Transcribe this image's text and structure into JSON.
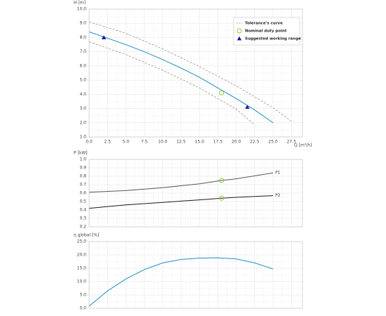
{
  "chart_data": [
    {
      "type": "line",
      "y_label": "H [m]",
      "x_label": "Q [m³/h]",
      "xlim": [
        0,
        29
      ],
      "ylim": [
        1,
        10
      ],
      "xticks": [
        {
          "value": 0,
          "label": "0.0"
        },
        2.5,
        {
          "value": 5,
          "label": "5.0"
        },
        7.5,
        {
          "value": 10,
          "label": "10.0"
        },
        12.5,
        {
          "value": 15,
          "label": "15.0"
        },
        17.5,
        {
          "value": 20,
          "label": "20.0"
        },
        22.5,
        {
          "value": 25,
          "label": "25.0"
        },
        27.5
      ],
      "yticks": [
        {
          "value": 1,
          "label": "1.0"
        },
        {
          "value": 2,
          "label": "2.0"
        },
        {
          "value": 3,
          "label": "3.0"
        },
        {
          "value": 4,
          "label": "4.0"
        },
        {
          "value": 5,
          "label": "5.0"
        },
        {
          "value": 6,
          "label": "6.0"
        },
        {
          "value": 7,
          "label": "7.0"
        },
        {
          "value": 8,
          "label": "8.0"
        },
        {
          "value": 9,
          "label": "9.0"
        },
        {
          "value": 10,
          "label": "10.0"
        }
      ],
      "grid": true,
      "legend": "upper right",
      "series": [
        {
          "name": "Tolerance's curve",
          "color": "#888888",
          "style": "dashed",
          "x": [
            0,
            5,
            10,
            15,
            20,
            25,
            27.5
          ],
          "values": [
            9.1,
            8.3,
            7.2,
            5.95,
            4.6,
            3.05,
            2.1
          ]
        },
        {
          "color": "#888888",
          "style": "dashed",
          "x": [
            0,
            5,
            10,
            15,
            20,
            22.5
          ],
          "values": [
            7.7,
            6.8,
            5.7,
            4.45,
            2.95,
            1.85
          ]
        },
        {
          "color": "#1f8dc4",
          "style": "solid",
          "x": [
            0,
            2.5,
            5,
            7.5,
            10,
            12.5,
            15,
            17.5,
            20,
            22.5,
            25
          ],
          "values": [
            8.4,
            7.95,
            7.5,
            7.0,
            6.45,
            5.85,
            5.2,
            4.45,
            3.7,
            2.9,
            2.0
          ]
        },
        {
          "name": "Nominal duty point",
          "color": "#8cc63f",
          "style": "circle",
          "x": [
            18
          ],
          "values": [
            4.1
          ]
        },
        {
          "name": "Suggested working range",
          "color": "#1515a0",
          "style": "triangle",
          "x": [
            2,
            21.5
          ],
          "values": [
            8.0,
            3.1
          ]
        }
      ]
    },
    {
      "type": "line",
      "y_label": "P [kW]",
      "xlim": [
        0,
        29
      ],
      "ylim": [
        0.2,
        1.0
      ],
      "yticks": [
        0.2,
        0.3,
        0.4,
        0.5,
        0.6,
        0.7,
        0.8,
        0.9,
        {
          "value": 1,
          "label": "1.0"
        }
      ],
      "grid": true,
      "legend": "line end",
      "series": [
        {
          "name": "P1",
          "color": "#555555",
          "style": "solid",
          "x": [
            0,
            5,
            10,
            15,
            18,
            20,
            25
          ],
          "values": [
            0.61,
            0.63,
            0.665,
            0.71,
            0.75,
            0.77,
            0.84
          ]
        },
        {
          "name": "P2",
          "color": "#1a1a1a",
          "style": "solid",
          "x": [
            0,
            5,
            10,
            15,
            18,
            20,
            25
          ],
          "values": [
            0.42,
            0.46,
            0.49,
            0.52,
            0.54,
            0.55,
            0.57
          ]
        },
        {
          "color": "#8cc63f",
          "style": "circle",
          "x": [
            18,
            18
          ],
          "values": [
            0.75,
            0.54
          ]
        }
      ]
    },
    {
      "type": "line",
      "y_label": "η global [%]",
      "xlim": [
        0,
        29
      ],
      "ylim": [
        0,
        25
      ],
      "yticks": [
        {
          "value": 0,
          "label": "0.0"
        },
        {
          "value": 5,
          "label": "5.0"
        },
        {
          "value": 10,
          "label": "10.0"
        },
        {
          "value": 15,
          "label": "15.0"
        },
        {
          "value": 20,
          "label": "20.0"
        },
        {
          "value": 25,
          "label": "25.0"
        }
      ],
      "grid": true,
      "series": [
        {
          "color": "#1f8dc4",
          "style": "solid",
          "x": [
            0,
            2.5,
            5,
            7.5,
            10,
            12.5,
            15,
            17.5,
            20,
            22.5,
            25
          ],
          "values": [
            0.8,
            6.5,
            11,
            14.5,
            17.0,
            18.3,
            18.8,
            18.9,
            18.5,
            17.0,
            14.7
          ]
        }
      ]
    }
  ]
}
